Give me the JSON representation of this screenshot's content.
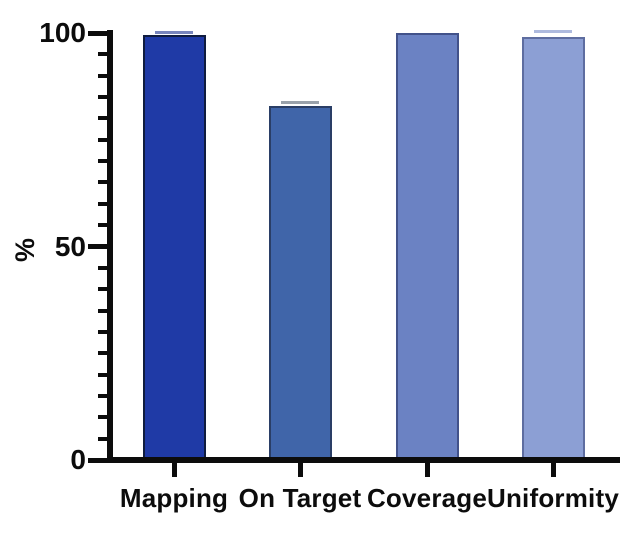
{
  "chart_data": {
    "type": "bar",
    "title": "",
    "xlabel": "",
    "ylabel": "%",
    "ylim": [
      0,
      100
    ],
    "yticks_major": [
      100,
      50,
      0
    ],
    "ytick_labels": [
      "100",
      "50",
      "0"
    ],
    "minor_tick_step": 5,
    "grid": false,
    "legend": null,
    "background_color": "#ffffff",
    "axis_color": "#0c0c0c",
    "categories": [
      "Mapping",
      "On Target",
      "Coverage",
      "Uniformity"
    ],
    "values": [
      99.5,
      83,
      100,
      99
    ],
    "bar_fill_colors": [
      "#1f3aa6",
      "#4065a9",
      "#6b82c3",
      "#8c9fd4"
    ],
    "bar_edge_colors": [
      "#0f1c3f",
      "#2a3e66",
      "#42528a",
      "#5e6da0"
    ],
    "error_caps": [
      {
        "show": true,
        "color": "#7886bd",
        "offset": 1
      },
      {
        "show": true,
        "color": "#9aa2ab",
        "offset": 2
      },
      {
        "show": false,
        "color": "",
        "offset": 0
      },
      {
        "show": true,
        "color": "#aebade",
        "offset": 4
      }
    ]
  }
}
